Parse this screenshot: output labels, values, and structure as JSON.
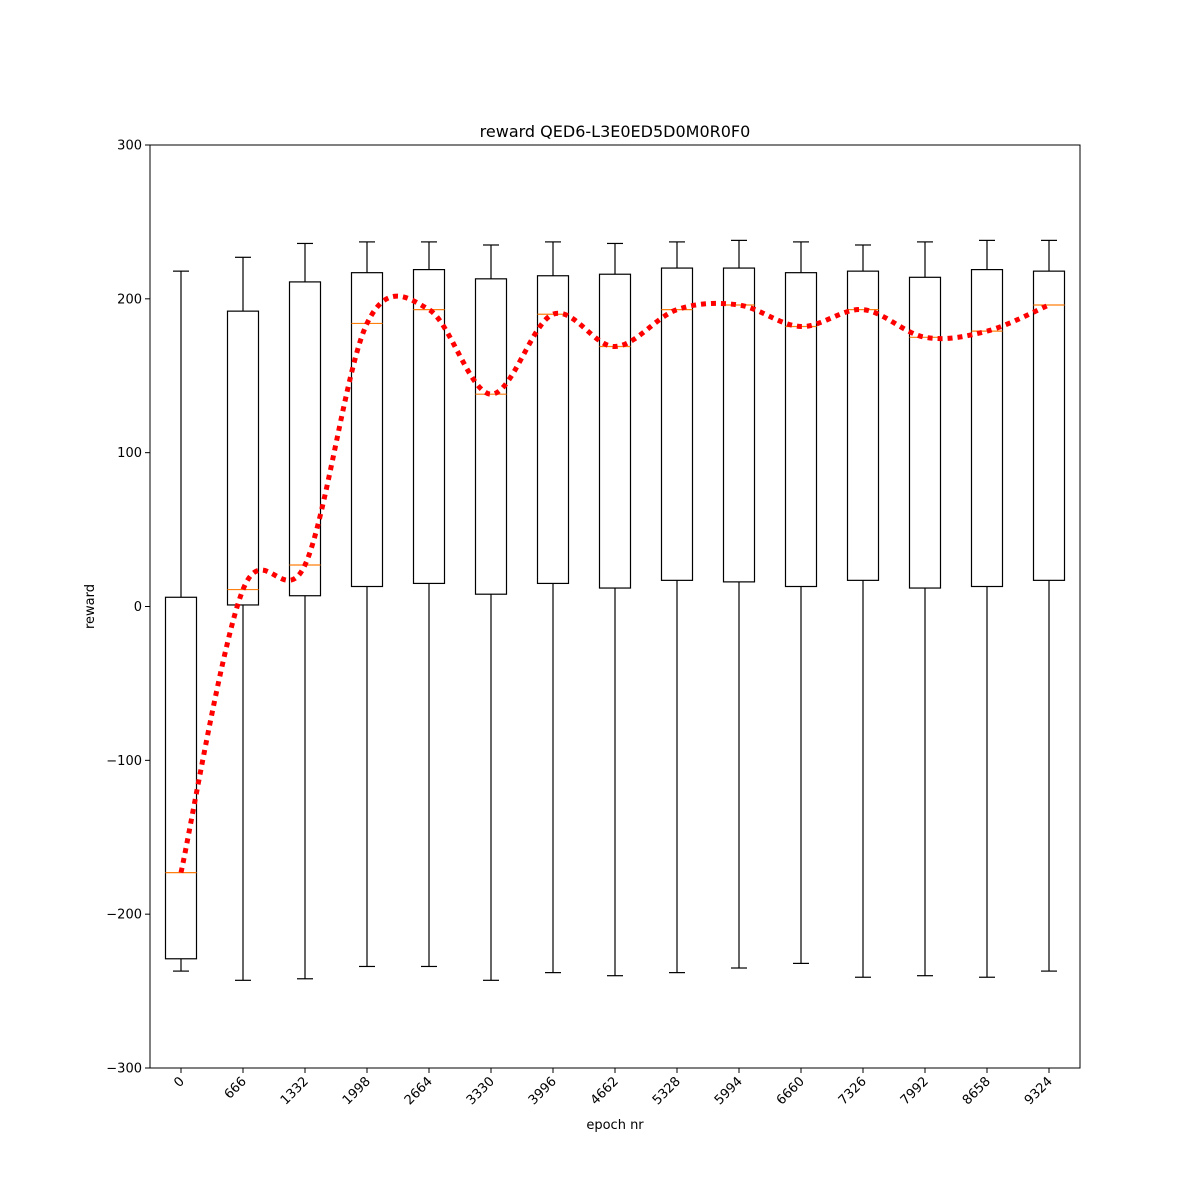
{
  "chart_data": {
    "type": "box",
    "title": "reward QED6-L3E0ED5D0M0R0F0",
    "xlabel": "epoch nr",
    "ylabel": "reward",
    "ylim": [
      -300,
      300
    ],
    "yticks": [
      -300,
      -200,
      -100,
      0,
      100,
      200,
      300
    ],
    "grid": false,
    "categories": [
      "0",
      "666",
      "1332",
      "1998",
      "2664",
      "3330",
      "3996",
      "4662",
      "5328",
      "5994",
      "6660",
      "7326",
      "7992",
      "8658",
      "9324"
    ],
    "boxes": [
      {
        "whislo": -237,
        "q1": -229,
        "med": -173,
        "q3": 6,
        "whishi": 218
      },
      {
        "whislo": -243,
        "q1": 1,
        "med": 11,
        "q3": 192,
        "whishi": 227
      },
      {
        "whislo": -242,
        "q1": 7,
        "med": 27,
        "q3": 211,
        "whishi": 236
      },
      {
        "whislo": -234,
        "q1": 13,
        "med": 184,
        "q3": 217,
        "whishi": 237
      },
      {
        "whislo": -234,
        "q1": 15,
        "med": 193,
        "q3": 219,
        "whishi": 237
      },
      {
        "whislo": -243,
        "q1": 8,
        "med": 138,
        "q3": 213,
        "whishi": 235
      },
      {
        "whislo": -238,
        "q1": 15,
        "med": 190,
        "q3": 215,
        "whishi": 237
      },
      {
        "whislo": -240,
        "q1": 12,
        "med": 169,
        "q3": 216,
        "whishi": 236
      },
      {
        "whislo": -238,
        "q1": 17,
        "med": 193,
        "q3": 220,
        "whishi": 237
      },
      {
        "whislo": -235,
        "q1": 16,
        "med": 196,
        "q3": 220,
        "whishi": 238
      },
      {
        "whislo": -232,
        "q1": 13,
        "med": 182,
        "q3": 217,
        "whishi": 237
      },
      {
        "whislo": -241,
        "q1": 17,
        "med": 193,
        "q3": 218,
        "whishi": 235
      },
      {
        "whislo": -240,
        "q1": 12,
        "med": 175,
        "q3": 214,
        "whishi": 237
      },
      {
        "whislo": -241,
        "q1": 13,
        "med": 179,
        "q3": 219,
        "whishi": 238
      },
      {
        "whislo": -237,
        "q1": 17,
        "med": 196,
        "q3": 218,
        "whishi": 238
      }
    ],
    "trend_line": {
      "values": [
        -173,
        11,
        27,
        184,
        193,
        138,
        190,
        169,
        193,
        196,
        182,
        193,
        175,
        179,
        196
      ],
      "style": "dotted",
      "smooth": true
    },
    "colors": {
      "box": "#000000",
      "median": "#ff7f0e",
      "trend": "#ff0000"
    }
  }
}
